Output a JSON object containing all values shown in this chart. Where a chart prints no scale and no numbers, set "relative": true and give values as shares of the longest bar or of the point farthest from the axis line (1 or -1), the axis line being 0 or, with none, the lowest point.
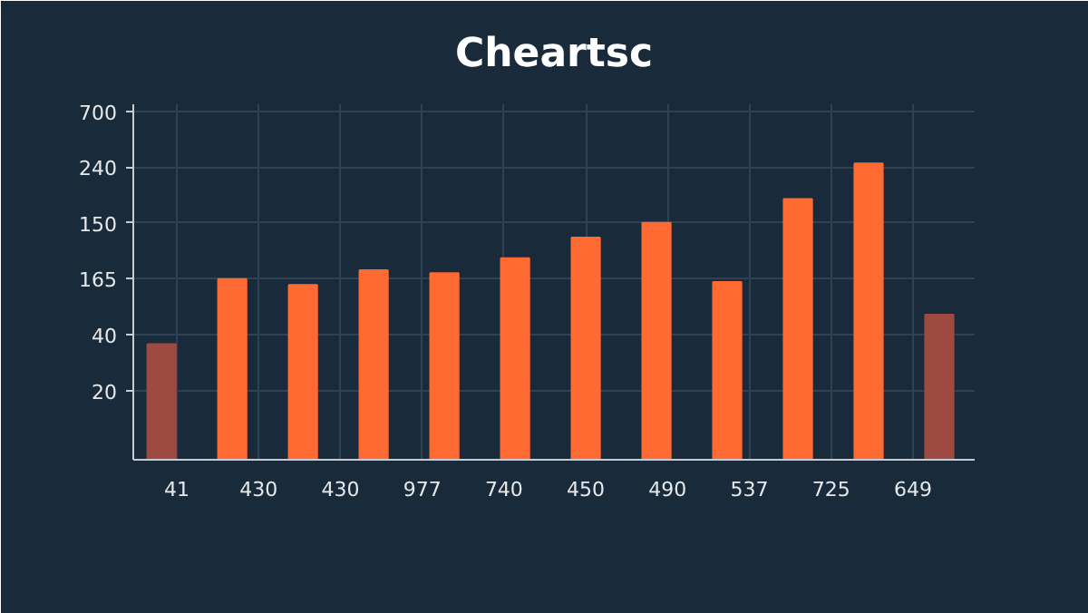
{
  "chart_data": {
    "type": "bar",
    "title": "Cheartsc",
    "relative": true,
    "categories": [
      null,
      null,
      null,
      null,
      null,
      null,
      null,
      null,
      null,
      null,
      null,
      null
    ],
    "values": [
      0.39,
      0.61,
      0.59,
      0.64,
      0.63,
      0.68,
      0.75,
      0.8,
      0.6,
      0.88,
      1,
      0.49
    ],
    "colors": [
      "#9e4a40",
      "#ff6a33",
      "#ff6a33",
      "#ff6a33",
      "#ff6a33",
      "#ff6a33",
      "#ff6a33",
      "#ff6a33",
      "#ff6a33",
      "#ff6a33",
      "#ff6a33",
      "#9e4a40"
    ],
    "annotations": [
      "700",
      "240",
      "150",
      "165",
      "40",
      "20",
      "41",
      "430",
      "430",
      "977",
      "740",
      "450",
      "490",
      "537",
      "725",
      "649"
    ],
    "grid": true
  }
}
